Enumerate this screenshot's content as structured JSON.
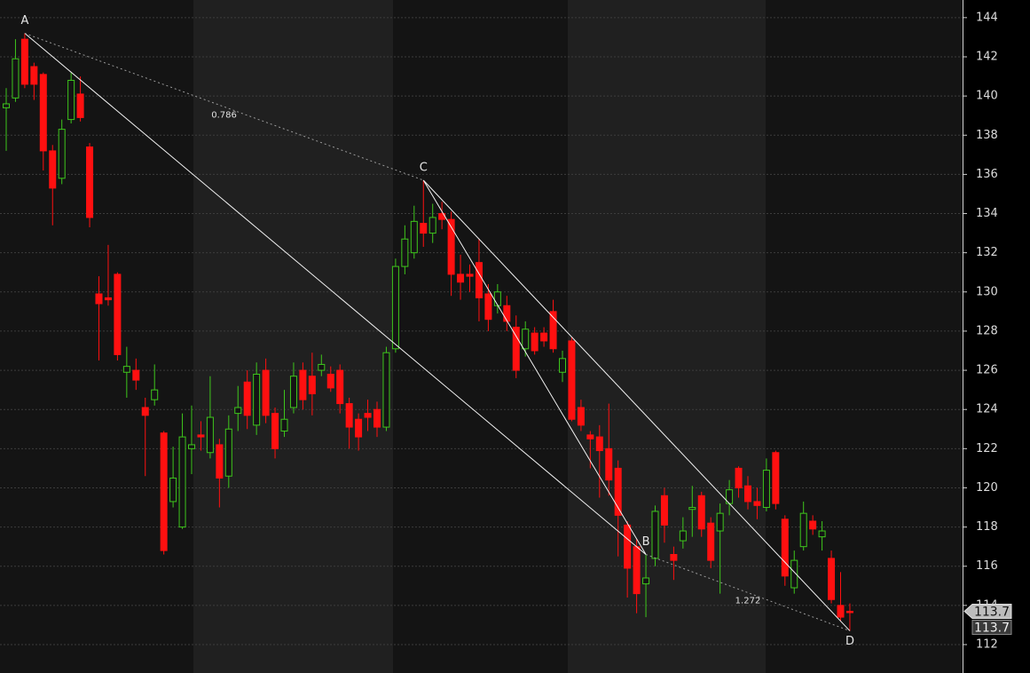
{
  "chart_data": {
    "type": "candlestick",
    "open": [
      139.4,
      139.9,
      142.9,
      141.5,
      141.1,
      137.2,
      135.8,
      138.8,
      140.1,
      137.4,
      129.9,
      129.7,
      130.9,
      125.9,
      126.0,
      124.1,
      124.5,
      122.8,
      119.3,
      118.0,
      122.0,
      122.7,
      121.8,
      122.2,
      120.6,
      123.8,
      125.4,
      123.2,
      126.0,
      123.8,
      122.9,
      124.1,
      126.0,
      125.7,
      126.0,
      125.8,
      126.0,
      124.3,
      123.5,
      123.8,
      124.0,
      123.1,
      127.1,
      131.3,
      132.0,
      133.5,
      133.0,
      134.0,
      133.7,
      130.9,
      130.9,
      131.5,
      129.9,
      129.3,
      129.3,
      128.2,
      127.1,
      127.9,
      127.9,
      129.0,
      125.9,
      127.5,
      124.1,
      122.7,
      122.6,
      122.0,
      121.0,
      118.1,
      117.0,
      115.1,
      116.4,
      119.6,
      116.6,
      117.3,
      118.9,
      119.6,
      118.2,
      117.8,
      119.2,
      121.0,
      120.1,
      119.3,
      119.0,
      121.8,
      118.4,
      114.9,
      117.0,
      118.3,
      117.5,
      116.4,
      114.0,
      113.7
    ],
    "high": [
      140.4,
      142.9,
      143.2,
      141.7,
      141.2,
      137.5,
      138.8,
      141.2,
      141.0,
      137.6,
      130.8,
      132.4,
      131.0,
      127.2,
      126.6,
      124.6,
      126.3,
      122.9,
      122.1,
      123.8,
      124.2,
      123.4,
      125.7,
      122.5,
      123.7,
      125.2,
      126.0,
      126.4,
      126.6,
      124.1,
      125.0,
      126.4,
      126.4,
      126.9,
      126.8,
      126.2,
      126.3,
      124.6,
      123.8,
      124.5,
      124.4,
      127.2,
      131.7,
      133.4,
      134.4,
      135.7,
      134.5,
      134.6,
      134.1,
      131.9,
      131.4,
      132.7,
      130.4,
      130.4,
      129.8,
      128.8,
      128.5,
      128.2,
      128.2,
      129.6,
      127.0,
      127.7,
      124.5,
      122.9,
      123.2,
      124.3,
      121.4,
      118.3,
      117.4,
      116.6,
      119.1,
      120.0,
      117.0,
      118.5,
      120.1,
      119.8,
      118.5,
      119.2,
      120.4,
      121.1,
      120.6,
      120.0,
      121.5,
      121.9,
      118.6,
      116.8,
      119.3,
      118.6,
      118.3,
      116.8,
      115.7,
      114.1
    ],
    "low": [
      137.2,
      139.7,
      140.4,
      139.8,
      136.2,
      133.4,
      135.5,
      138.6,
      138.7,
      133.3,
      126.5,
      129.3,
      126.5,
      124.6,
      125.0,
      120.6,
      124.2,
      116.6,
      119.0,
      117.9,
      120.7,
      121.9,
      121.5,
      119.0,
      120.0,
      122.9,
      123.0,
      122.7,
      123.3,
      121.5,
      122.6,
      123.8,
      124.0,
      123.7,
      125.7,
      124.9,
      123.8,
      122.0,
      121.9,
      122.9,
      122.6,
      122.9,
      126.9,
      130.9,
      131.7,
      132.3,
      132.5,
      133.2,
      129.8,
      129.6,
      130.0,
      128.5,
      128.0,
      128.9,
      128.0,
      125.6,
      126.7,
      126.8,
      127.2,
      126.9,
      125.4,
      123.4,
      122.9,
      121.0,
      119.5,
      119.6,
      116.5,
      114.4,
      113.6,
      113.4,
      116.0,
      117.2,
      115.3,
      116.9,
      117.5,
      117.5,
      115.9,
      114.6,
      118.6,
      119.5,
      118.9,
      118.4,
      118.8,
      118.9,
      115.0,
      114.6,
      116.8,
      117.6,
      116.8,
      114.1,
      113.2,
      112.7
    ],
    "close": [
      139.6,
      141.9,
      140.6,
      140.6,
      137.2,
      135.3,
      138.3,
      140.8,
      138.9,
      133.8,
      129.4,
      129.6,
      126.8,
      126.2,
      125.5,
      123.7,
      125.0,
      116.8,
      120.5,
      122.6,
      122.2,
      122.6,
      123.6,
      120.5,
      123.0,
      124.1,
      123.7,
      125.8,
      123.7,
      122.0,
      123.5,
      125.7,
      124.5,
      124.8,
      126.3,
      125.1,
      124.3,
      123.1,
      122.6,
      123.6,
      123.1,
      126.9,
      131.3,
      132.7,
      133.6,
      133.0,
      133.8,
      133.7,
      130.9,
      130.5,
      130.8,
      129.7,
      128.6,
      130.0,
      128.5,
      126.0,
      128.1,
      127.0,
      127.5,
      127.1,
      126.6,
      123.5,
      123.2,
      122.5,
      121.9,
      120.4,
      118.6,
      115.9,
      114.6,
      115.4,
      118.8,
      118.1,
      116.3,
      117.8,
      119.0,
      117.9,
      116.3,
      118.7,
      119.9,
      120.0,
      119.3,
      119.1,
      120.9,
      119.2,
      115.5,
      116.3,
      118.7,
      117.9,
      117.8,
      114.3,
      113.4,
      113.7
    ],
    "up_color": "#3ec61c",
    "down_color": "#ff1010",
    "ylim": [
      110.55,
      144.9
    ],
    "yticks": [
      112,
      114,
      116,
      118,
      120,
      122,
      124,
      126,
      128,
      130,
      132,
      134,
      136,
      138,
      140,
      142,
      144
    ],
    "grid": true,
    "pattern": [
      {
        "label": "A",
        "price": 143.2
      },
      {
        "label": "B",
        "price": 116.6
      },
      {
        "label": "C",
        "price": 135.7
      },
      {
        "label": "D",
        "price": 112.7
      }
    ],
    "ratios": [
      0.786,
      1.272
    ],
    "last_price": 113.7
  }
}
